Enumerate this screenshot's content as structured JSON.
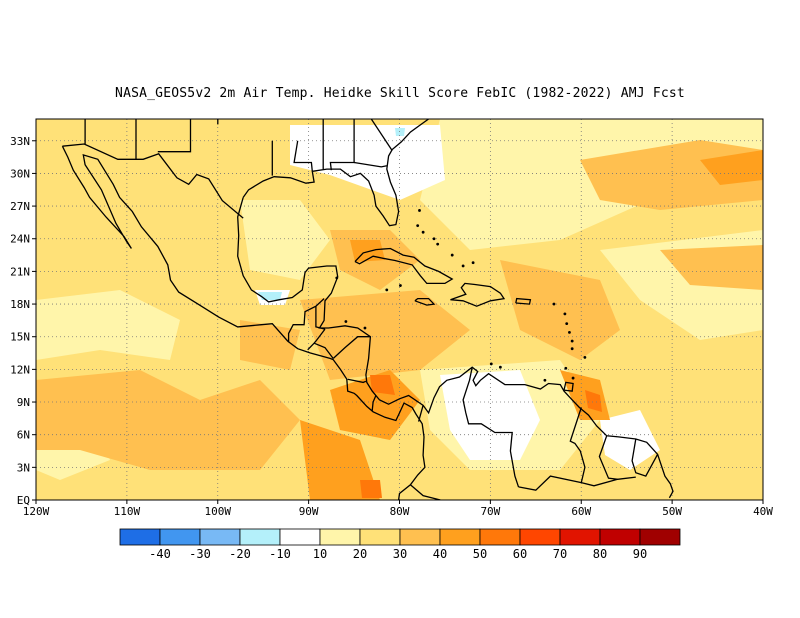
{
  "title": "NASA_GEOS5v2  2m Air Temp. Heidke Skill Score FebIC (1982-2022) AMJ Fcst",
  "map": {
    "lat_labels": [
      "33N",
      "30N",
      "27N",
      "24N",
      "21N",
      "18N",
      "15N",
      "12N",
      "9N",
      "6N",
      "3N",
      "EQ"
    ],
    "lon_labels": [
      "120W",
      "110W",
      "100W",
      "90W",
      "80W",
      "70W",
      "60W",
      "50W",
      "40W"
    ],
    "grid": "dotted"
  },
  "colorbar": {
    "colors": [
      "#1e6ee6",
      "#4196f0",
      "#78b9f5",
      "#b4f0fa",
      "#ffffff",
      "#fff5aa",
      "#ffe178",
      "#ffc050",
      "#ffa01e",
      "#ff780a",
      "#ff4600",
      "#e11400",
      "#c00000",
      "#a00000"
    ],
    "labels": [
      "-40",
      "-30",
      "-20",
      "-10",
      "10",
      "20",
      "30",
      "40",
      "50",
      "60",
      "70",
      "80",
      "90"
    ]
  }
}
